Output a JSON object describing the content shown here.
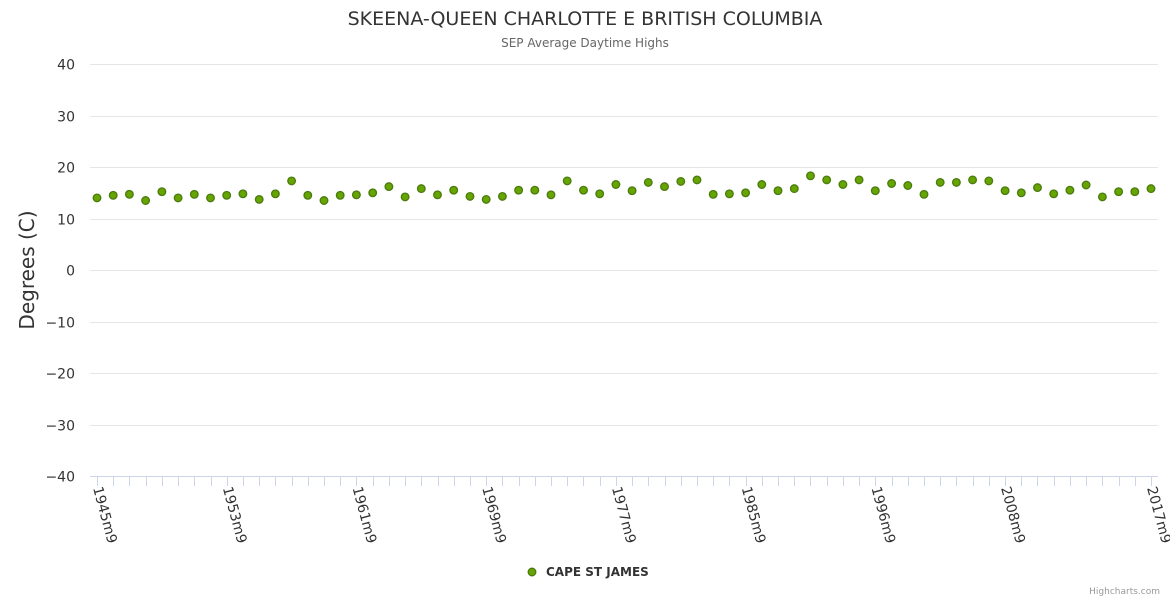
{
  "chart_data": {
    "type": "scatter",
    "title": "SKEENA-QUEEN CHARLOTTE E BRITISH COLUMBIA",
    "subtitle": "SEP Average Daytime Highs",
    "ylabel": "Degrees (C)",
    "xlabel": "",
    "ylim": [
      -40,
      40
    ],
    "yticks": [
      40,
      30,
      20,
      10,
      0,
      -10,
      -20,
      -30,
      -40
    ],
    "xtick_labels": [
      "1945m9",
      "1953m9",
      "1961m9",
      "1969m9",
      "1977m9",
      "1985m9",
      "1996m9",
      "2008m9",
      "2017m9"
    ],
    "xtick_indices": [
      0,
      8,
      16,
      24,
      32,
      40,
      48,
      56,
      65
    ],
    "color": "#66a400",
    "series": [
      {
        "name": "CAPE ST JAMES",
        "values": [
          14.0,
          14.5,
          14.7,
          13.5,
          15.2,
          14.0,
          14.7,
          14.0,
          14.5,
          14.8,
          13.7,
          14.8,
          17.3,
          14.5,
          13.5,
          14.5,
          14.6,
          15.0,
          16.2,
          14.2,
          15.8,
          14.6,
          15.5,
          14.3,
          13.7,
          14.3,
          15.5,
          15.5,
          14.6,
          17.3,
          15.5,
          14.8,
          16.6,
          15.4,
          17.0,
          16.2,
          17.2,
          17.5,
          14.7,
          14.8,
          15.0,
          16.6,
          15.4,
          15.8,
          18.3,
          17.5,
          16.6,
          17.5,
          15.4,
          16.8,
          16.4,
          14.7,
          17.0,
          17.0,
          17.5,
          17.3,
          15.4,
          15.0,
          16.0,
          14.8,
          15.5,
          16.5,
          14.2,
          15.2,
          15.2,
          15.8
        ]
      }
    ]
  },
  "legend": {
    "label": "CAPE ST JAMES",
    "position": "bottom-center"
  },
  "credits": "Highcharts.com"
}
